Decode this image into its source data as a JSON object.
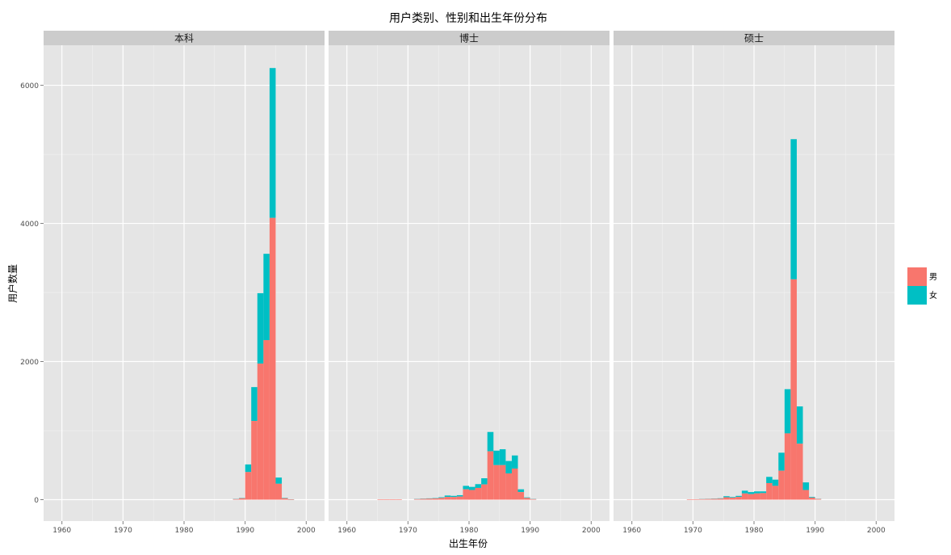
{
  "chart_data": {
    "type": "bar",
    "stacked": true,
    "title": "用户类别、性别和出生年份分布",
    "xlabel": "出生年份",
    "ylabel": "用户数量",
    "xlim": [
      1957,
      2003
    ],
    "ylim": [
      -310,
      6580
    ],
    "x_ticks": [
      1960,
      1970,
      1980,
      1990,
      2000
    ],
    "y_ticks": [
      0,
      2000,
      4000,
      6000
    ],
    "grid": true,
    "legend_position": "right",
    "colors": {
      "男": "#F8766D",
      "女": "#00BFC4",
      "panel": "#E5E5E5",
      "strip": "#CCCCCC",
      "grid": "#FFFFFF"
    },
    "series_names": [
      "男",
      "女"
    ],
    "facets": [
      {
        "label": "本科",
        "bars": [
          {
            "x": 1988,
            "male": 8,
            "female": 2
          },
          {
            "x": 1989,
            "male": 20,
            "female": 4
          },
          {
            "x": 1990,
            "male": 400,
            "female": 110
          },
          {
            "x": 1991,
            "male": 1140,
            "female": 490
          },
          {
            "x": 1992,
            "male": 1970,
            "female": 1020
          },
          {
            "x": 1993,
            "male": 2310,
            "female": 1250
          },
          {
            "x": 1994,
            "male": 4080,
            "female": 2170
          },
          {
            "x": 1995,
            "male": 230,
            "female": 90
          },
          {
            "x": 1996,
            "male": 20,
            "female": 5
          },
          {
            "x": 1997,
            "male": 5,
            "female": 1
          }
        ]
      },
      {
        "label": "博士",
        "bars": [
          {
            "x": 1965,
            "male": 5,
            "female": 0
          },
          {
            "x": 1966,
            "male": 5,
            "female": 0
          },
          {
            "x": 1967,
            "male": 5,
            "female": 0
          },
          {
            "x": 1968,
            "male": 5,
            "female": 0
          },
          {
            "x": 1971,
            "male": 8,
            "female": 2
          },
          {
            "x": 1972,
            "male": 12,
            "female": 3
          },
          {
            "x": 1973,
            "male": 15,
            "female": 4
          },
          {
            "x": 1974,
            "male": 18,
            "female": 5
          },
          {
            "x": 1975,
            "male": 25,
            "female": 10
          },
          {
            "x": 1976,
            "male": 40,
            "female": 20
          },
          {
            "x": 1977,
            "male": 38,
            "female": 17
          },
          {
            "x": 1978,
            "male": 45,
            "female": 20
          },
          {
            "x": 1979,
            "male": 150,
            "female": 50
          },
          {
            "x": 1980,
            "male": 140,
            "female": 45
          },
          {
            "x": 1981,
            "male": 170,
            "female": 55
          },
          {
            "x": 1982,
            "male": 220,
            "female": 90
          },
          {
            "x": 1983,
            "male": 700,
            "female": 280
          },
          {
            "x": 1984,
            "male": 500,
            "female": 210
          },
          {
            "x": 1985,
            "male": 500,
            "female": 230
          },
          {
            "x": 1986,
            "male": 380,
            "female": 180
          },
          {
            "x": 1987,
            "male": 450,
            "female": 190
          },
          {
            "x": 1988,
            "male": 110,
            "female": 40
          },
          {
            "x": 1989,
            "male": 25,
            "female": 8
          },
          {
            "x": 1990,
            "male": 8,
            "female": 2
          }
        ]
      },
      {
        "label": "硕士",
        "bars": [
          {
            "x": 1969,
            "male": 5,
            "female": 0
          },
          {
            "x": 1970,
            "male": 6,
            "female": 0
          },
          {
            "x": 1971,
            "male": 8,
            "female": 1
          },
          {
            "x": 1972,
            "male": 10,
            "female": 2
          },
          {
            "x": 1973,
            "male": 12,
            "female": 3
          },
          {
            "x": 1974,
            "male": 15,
            "female": 5
          },
          {
            "x": 1975,
            "male": 35,
            "female": 15
          },
          {
            "x": 1976,
            "male": 28,
            "female": 10
          },
          {
            "x": 1977,
            "male": 40,
            "female": 15
          },
          {
            "x": 1978,
            "male": 90,
            "female": 40
          },
          {
            "x": 1979,
            "male": 80,
            "female": 30
          },
          {
            "x": 1980,
            "male": 90,
            "female": 30
          },
          {
            "x": 1981,
            "male": 95,
            "female": 25
          },
          {
            "x": 1982,
            "male": 240,
            "female": 90
          },
          {
            "x": 1983,
            "male": 200,
            "female": 90
          },
          {
            "x": 1984,
            "male": 420,
            "female": 260
          },
          {
            "x": 1985,
            "male": 960,
            "female": 640
          },
          {
            "x": 1986,
            "male": 3190,
            "female": 2030
          },
          {
            "x": 1987,
            "male": 810,
            "female": 540
          },
          {
            "x": 1988,
            "male": 140,
            "female": 110
          },
          {
            "x": 1989,
            "male": 30,
            "female": 10
          },
          {
            "x": 1990,
            "male": 10,
            "female": 2
          }
        ]
      }
    ]
  }
}
